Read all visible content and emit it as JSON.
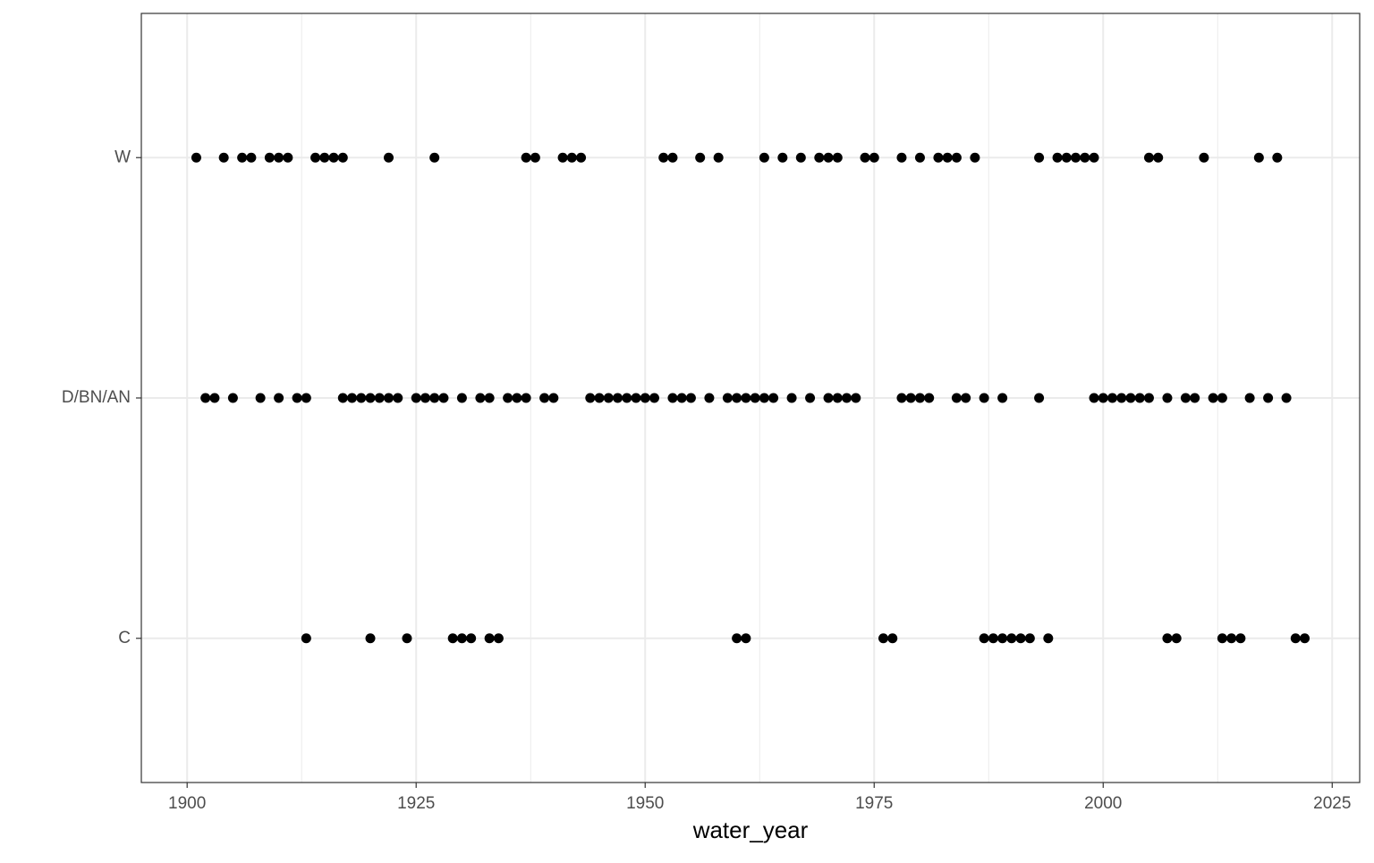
{
  "chart_data": {
    "type": "scatter",
    "x_label": "water_year",
    "y_categories": [
      "C",
      "D/BN/AN",
      "W"
    ],
    "x_by_category": [
      [
        1913,
        1920,
        1924,
        1929,
        1930,
        1931,
        1933,
        1934,
        1960,
        1961,
        1976,
        1977,
        1987,
        1988,
        1989,
        1990,
        1991,
        1992,
        1994,
        2007,
        2008,
        2013,
        2014,
        2015,
        2021,
        2022
      ],
      [
        1902,
        1903,
        1905,
        1908,
        1910,
        1912,
        1913,
        1917,
        1918,
        1919,
        1920,
        1921,
        1922,
        1923,
        1925,
        1926,
        1927,
        1928,
        1930,
        1932,
        1933,
        1935,
        1936,
        1937,
        1939,
        1940,
        1944,
        1945,
        1946,
        1947,
        1948,
        1949,
        1950,
        1951,
        1953,
        1954,
        1955,
        1957,
        1959,
        1960,
        1961,
        1962,
        1963,
        1964,
        1966,
        1968,
        1970,
        1971,
        1972,
        1973,
        1978,
        1979,
        1980,
        1981,
        1984,
        1985,
        1987,
        1989,
        1993,
        1999,
        2000,
        2001,
        2002,
        2003,
        2004,
        2005,
        2007,
        2009,
        2010,
        2012,
        2013,
        2016,
        2018,
        2020
      ],
      [
        1901,
        1904,
        1906,
        1907,
        1909,
        1910,
        1911,
        1914,
        1915,
        1916,
        1917,
        1922,
        1927,
        1937,
        1938,
        1941,
        1942,
        1943,
        1952,
        1953,
        1956,
        1958,
        1963,
        1965,
        1967,
        1969,
        1970,
        1971,
        1974,
        1975,
        1978,
        1980,
        1982,
        1983,
        1984,
        1986,
        1993,
        1995,
        1996,
        1997,
        1998,
        1999,
        2005,
        2006,
        2011,
        2017,
        2019
      ]
    ],
    "color": "#000000",
    "xlim": [
      1895,
      2028
    ],
    "xticks": [
      1900,
      1925,
      1950,
      1975,
      2000,
      2025
    ],
    "x_minor_grid": [
      1912.5,
      1937.5,
      1962.5,
      1987.5,
      2012.5
    ],
    "grid": true
  }
}
